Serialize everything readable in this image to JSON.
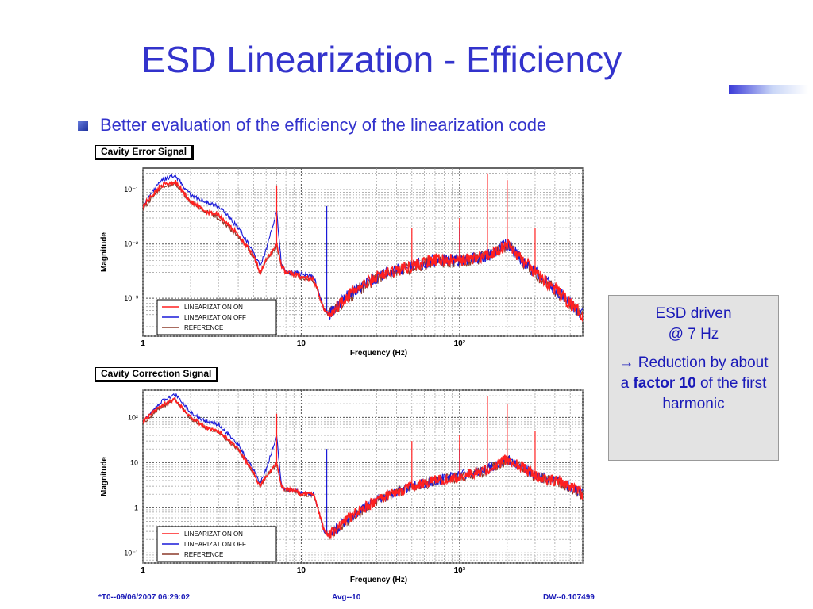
{
  "slide": {
    "title": "ESD Linearization - Efficiency",
    "bullet": "Better evaluation of the efficiency of the linearization code"
  },
  "note": {
    "line1": "ESD driven",
    "line2": "@ 7 Hz",
    "arrow": "→",
    "reduction_pre": " Reduction by about a ",
    "reduction_bold": "factor 10",
    "reduction_post": " of the first harmonic"
  },
  "footer": {
    "left": "*T0--09/06/2007 06:29:02",
    "center": "Avg--10",
    "right": "DW--0.107499"
  },
  "colors": {
    "title": "#3333cc",
    "linearizat_on": "#ff2020",
    "linearizat_off": "#1a1ad8",
    "reference": "#8b3a2a"
  },
  "chart_data": [
    {
      "type": "line",
      "title": "Cavity Error Signal",
      "xlabel": "Frequency (Hz)",
      "ylabel": "Magnitude",
      "xscale": "log",
      "yscale": "log",
      "xlim": [
        1,
        600
      ],
      "ylim": [
        0.0002,
        0.25
      ],
      "x_ticks": [
        {
          "v": 1,
          "label": "1"
        },
        {
          "v": 10,
          "label": "10"
        },
        {
          "v": 100,
          "label": "10²"
        }
      ],
      "y_ticks": [
        {
          "v": 0.1,
          "label": "10⁻¹"
        },
        {
          "v": 0.01,
          "label": "10⁻²"
        },
        {
          "v": 0.001,
          "label": "10⁻³"
        }
      ],
      "grid": true,
      "legend_position": "bottom-left",
      "series": [
        {
          "name": "LINEARIZAT ON ON",
          "color": "#ff2020",
          "points": [
            [
              1,
              0.05
            ],
            [
              1.3,
              0.12
            ],
            [
              1.6,
              0.14
            ],
            [
              2,
              0.06
            ],
            [
              2.5,
              0.04
            ],
            [
              3,
              0.035
            ],
            [
              4,
              0.015
            ],
            [
              5,
              0.006
            ],
            [
              5.5,
              0.003
            ],
            [
              6,
              0.005
            ],
            [
              7,
              0.01
            ],
            [
              7.5,
              0.004
            ],
            [
              8,
              0.003
            ],
            [
              9,
              0.0028
            ],
            [
              10,
              0.0025
            ],
            [
              12,
              0.0022
            ],
            [
              14,
              0.0006
            ],
            [
              15,
              0.0005
            ],
            [
              20,
              0.0012
            ],
            [
              30,
              0.0025
            ],
            [
              50,
              0.004
            ],
            [
              70,
              0.005
            ],
            [
              100,
              0.005
            ],
            [
              150,
              0.006
            ],
            [
              200,
              0.01
            ],
            [
              250,
              0.005
            ],
            [
              300,
              0.003
            ],
            [
              400,
              0.0015
            ],
            [
              500,
              0.0008
            ],
            [
              600,
              0.0005
            ]
          ],
          "spikes": [
            [
              7,
              0.12
            ],
            [
              50,
              0.02
            ],
            [
              100,
              0.03
            ],
            [
              150,
              0.2
            ],
            [
              200,
              0.15
            ],
            [
              300,
              0.02
            ]
          ]
        },
        {
          "name": "LINEARIZAT ON OFF",
          "color": "#1a1ad8",
          "points": [
            [
              1,
              0.05
            ],
            [
              1.3,
              0.15
            ],
            [
              1.6,
              0.18
            ],
            [
              2,
              0.08
            ],
            [
              2.5,
              0.06
            ],
            [
              3,
              0.05
            ],
            [
              4,
              0.02
            ],
            [
              5,
              0.007
            ],
            [
              5.5,
              0.004
            ],
            [
              6,
              0.008
            ],
            [
              7,
              0.04
            ],
            [
              7.5,
              0.004
            ],
            [
              8,
              0.003
            ],
            [
              9,
              0.003
            ],
            [
              10,
              0.0028
            ],
            [
              12,
              0.0025
            ],
            [
              14,
              0.0006
            ],
            [
              15,
              0.0005
            ],
            [
              20,
              0.0012
            ],
            [
              30,
              0.0025
            ],
            [
              50,
              0.004
            ],
            [
              70,
              0.005
            ],
            [
              100,
              0.005
            ],
            [
              150,
              0.006
            ],
            [
              200,
              0.01
            ],
            [
              250,
              0.005
            ],
            [
              300,
              0.003
            ],
            [
              400,
              0.0015
            ],
            [
              500,
              0.0008
            ],
            [
              600,
              0.0005
            ]
          ],
          "spikes": [
            [
              14.5,
              0.05
            ],
            [
              100,
              0.02
            ]
          ]
        },
        {
          "name": "REFERENCE",
          "color": "#8b3a2a",
          "points": [
            [
              1,
              0.045
            ],
            [
              1.3,
              0.11
            ],
            [
              1.6,
              0.13
            ],
            [
              2,
              0.06
            ],
            [
              2.5,
              0.04
            ],
            [
              3,
              0.03
            ],
            [
              4,
              0.014
            ],
            [
              5,
              0.006
            ],
            [
              5.5,
              0.003
            ],
            [
              6,
              0.005
            ],
            [
              7,
              0.009
            ],
            [
              7.5,
              0.004
            ],
            [
              8,
              0.003
            ],
            [
              9,
              0.0027
            ],
            [
              10,
              0.0024
            ],
            [
              12,
              0.0021
            ],
            [
              14,
              0.0006
            ],
            [
              15,
              0.0005
            ],
            [
              20,
              0.0011
            ],
            [
              30,
              0.0024
            ],
            [
              50,
              0.0038
            ],
            [
              70,
              0.0048
            ],
            [
              100,
              0.0048
            ],
            [
              150,
              0.0058
            ],
            [
              200,
              0.0095
            ],
            [
              250,
              0.0048
            ],
            [
              300,
              0.0029
            ],
            [
              400,
              0.0014
            ],
            [
              500,
              0.0008
            ],
            [
              600,
              0.0005
            ]
          ],
          "spikes": []
        }
      ]
    },
    {
      "type": "line",
      "title": "Cavity Correction Signal",
      "xlabel": "Frequency (Hz)",
      "ylabel": "Magnitude",
      "xscale": "log",
      "yscale": "log",
      "xlim": [
        1,
        600
      ],
      "ylim": [
        0.06,
        400
      ],
      "x_ticks": [
        {
          "v": 1,
          "label": "1"
        },
        {
          "v": 10,
          "label": "10"
        },
        {
          "v": 100,
          "label": "10²"
        }
      ],
      "y_ticks": [
        {
          "v": 100,
          "label": "10²"
        },
        {
          "v": 10,
          "label": "10"
        },
        {
          "v": 1,
          "label": "1"
        },
        {
          "v": 0.1,
          "label": "10⁻¹"
        }
      ],
      "grid": true,
      "legend_position": "bottom-left",
      "series": [
        {
          "name": "LINEARIZAT ON ON",
          "color": "#ff2020",
          "points": [
            [
              1,
              80
            ],
            [
              1.3,
              180
            ],
            [
              1.6,
              250
            ],
            [
              2,
              100
            ],
            [
              2.5,
              60
            ],
            [
              3,
              50
            ],
            [
              4,
              20
            ],
            [
              5,
              6
            ],
            [
              5.5,
              3
            ],
            [
              6,
              5
            ],
            [
              7,
              10
            ],
            [
              7.5,
              3
            ],
            [
              8,
              2.5
            ],
            [
              9,
              2.5
            ],
            [
              10,
              2
            ],
            [
              12,
              2
            ],
            [
              14,
              0.3
            ],
            [
              15,
              0.25
            ],
            [
              20,
              0.6
            ],
            [
              30,
              1.5
            ],
            [
              50,
              3
            ],
            [
              70,
              4
            ],
            [
              100,
              5
            ],
            [
              150,
              7
            ],
            [
              200,
              12
            ],
            [
              250,
              8
            ],
            [
              300,
              5
            ],
            [
              400,
              4
            ],
            [
              500,
              3
            ],
            [
              600,
              2
            ]
          ],
          "spikes": [
            [
              7,
              120
            ],
            [
              50,
              30
            ],
            [
              100,
              40
            ],
            [
              150,
              300
            ],
            [
              200,
              200
            ],
            [
              300,
              50
            ]
          ]
        },
        {
          "name": "LINEARIZAT ON OFF",
          "color": "#1a1ad8",
          "points": [
            [
              1,
              80
            ],
            [
              1.3,
              220
            ],
            [
              1.6,
              320
            ],
            [
              2,
              130
            ],
            [
              2.5,
              80
            ],
            [
              3,
              70
            ],
            [
              4,
              25
            ],
            [
              5,
              7
            ],
            [
              5.5,
              3.5
            ],
            [
              6,
              7
            ],
            [
              7,
              40
            ],
            [
              7.5,
              3
            ],
            [
              8,
              2.5
            ],
            [
              9,
              2.5
            ],
            [
              10,
              2.2
            ],
            [
              12,
              2
            ],
            [
              14,
              0.3
            ],
            [
              15,
              0.25
            ],
            [
              20,
              0.6
            ],
            [
              30,
              1.5
            ],
            [
              50,
              3
            ],
            [
              70,
              4
            ],
            [
              100,
              5
            ],
            [
              150,
              7
            ],
            [
              200,
              12
            ],
            [
              250,
              8
            ],
            [
              300,
              5
            ],
            [
              400,
              4
            ],
            [
              500,
              3
            ],
            [
              600,
              2
            ]
          ],
          "spikes": [
            [
              14.5,
              20
            ],
            [
              100,
              20
            ]
          ]
        },
        {
          "name": "REFERENCE",
          "color": "#8b3a2a",
          "points": [
            [
              1,
              75
            ],
            [
              1.3,
              170
            ],
            [
              1.6,
              240
            ],
            [
              2,
              95
            ],
            [
              2.5,
              58
            ],
            [
              3,
              48
            ],
            [
              4,
              19
            ],
            [
              5,
              6
            ],
            [
              5.5,
              3
            ],
            [
              6,
              5
            ],
            [
              7,
              9
            ],
            [
              7.5,
              3
            ],
            [
              8,
              2.4
            ],
            [
              9,
              2.4
            ],
            [
              10,
              1.9
            ],
            [
              12,
              1.9
            ],
            [
              14,
              0.3
            ],
            [
              15,
              0.24
            ],
            [
              20,
              0.55
            ],
            [
              30,
              1.4
            ],
            [
              50,
              2.9
            ],
            [
              70,
              3.8
            ],
            [
              100,
              4.8
            ],
            [
              150,
              6.7
            ],
            [
              200,
              11
            ],
            [
              250,
              7.5
            ],
            [
              300,
              4.8
            ],
            [
              400,
              3.8
            ],
            [
              500,
              2.8
            ],
            [
              600,
              1.9
            ]
          ],
          "spikes": []
        }
      ]
    }
  ]
}
